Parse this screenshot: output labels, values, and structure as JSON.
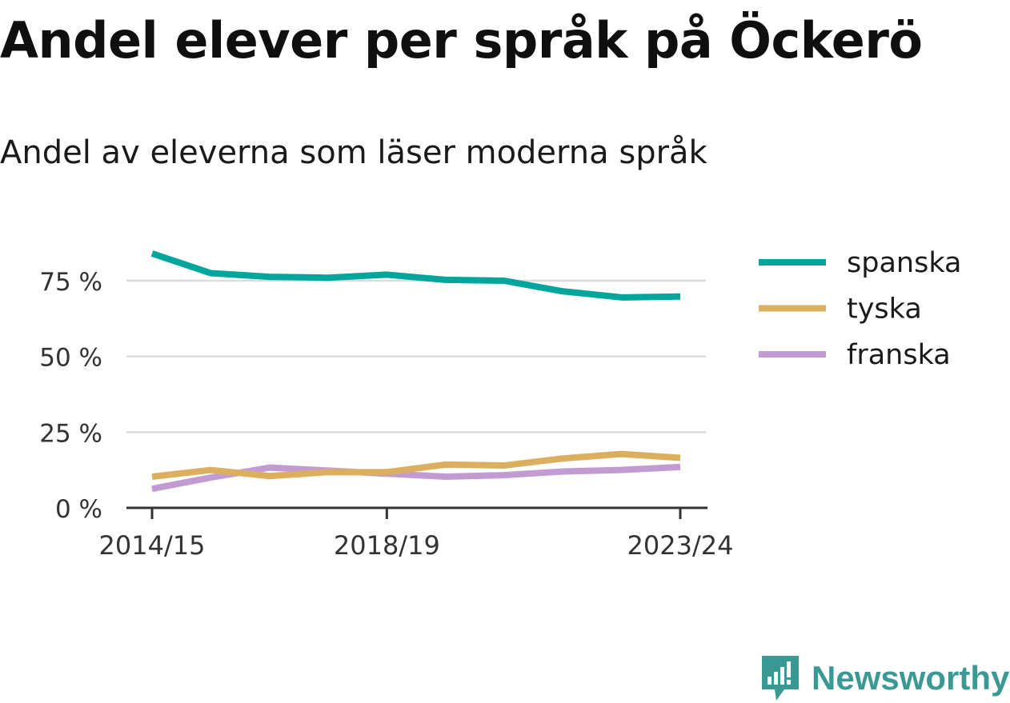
{
  "header": {
    "title": "Andel elever per språk på Öckerö",
    "subtitle": "Andel av eleverna som läser moderna språk"
  },
  "brand": {
    "name": "Newsworthy",
    "color": "#3a9a93",
    "icon": "newsworthy-logo-icon"
  },
  "chart_data": {
    "type": "line",
    "x": [
      "2014/15",
      "2015/16",
      "2016/17",
      "2017/18",
      "2018/19",
      "2019/20",
      "2020/21",
      "2021/22",
      "2022/23",
      "2023/24"
    ],
    "x_tick_labels": [
      "2014/15",
      "2018/19",
      "2023/24"
    ],
    "ylim": [
      0,
      90
    ],
    "y_ticks": [
      0,
      25,
      50,
      75
    ],
    "y_tick_labels": [
      "0 %",
      "25 %",
      "50 %",
      "75 %"
    ],
    "grid": true,
    "legend_position": "right",
    "xlabel": "",
    "ylabel": "",
    "series": [
      {
        "name": "spanska",
        "color": "#00a59b",
        "values": [
          84.0,
          77.5,
          76.3,
          76.0,
          77.0,
          75.3,
          75.0,
          71.5,
          69.5,
          69.8
        ]
      },
      {
        "name": "tyska",
        "color": "#dcaf5e",
        "values": [
          10.3,
          12.5,
          10.5,
          11.8,
          11.8,
          14.3,
          14.0,
          16.3,
          17.8,
          16.5
        ]
      },
      {
        "name": "franska",
        "color": "#c39bd3",
        "values": [
          6.3,
          10.0,
          13.3,
          12.3,
          11.3,
          10.3,
          10.8,
          12.0,
          12.5,
          13.5
        ]
      }
    ]
  }
}
